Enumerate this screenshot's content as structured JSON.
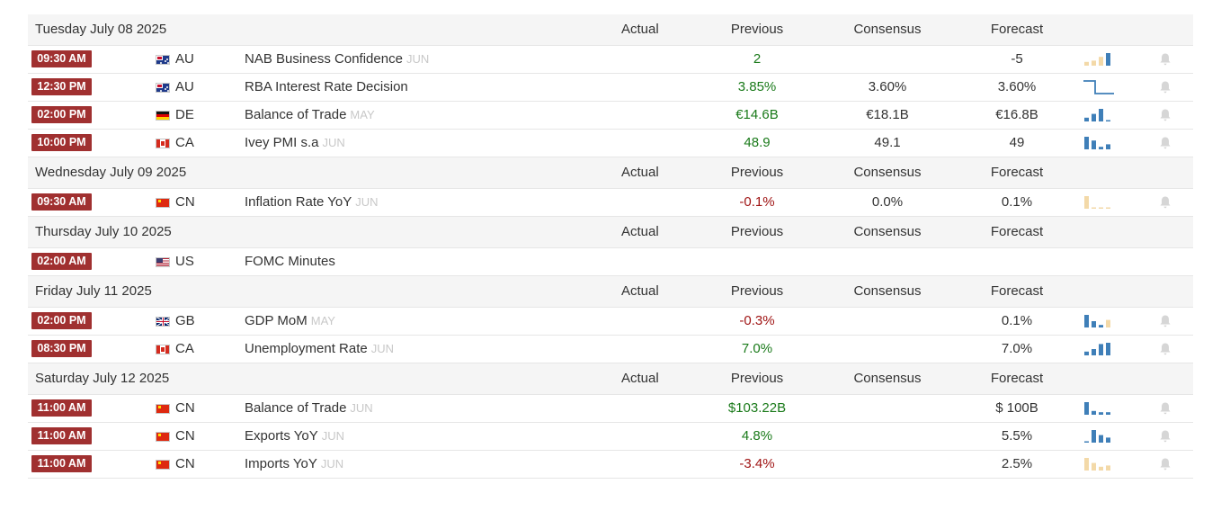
{
  "columns": {
    "actual": "Actual",
    "previous": "Previous",
    "consensus": "Consensus",
    "forecast": "Forecast"
  },
  "colors": {
    "time_badge": "#a03030",
    "positive": "#1a7a1a",
    "negative": "#a01515",
    "spark_blue": "#3f7fb8",
    "spark_orange": "#f3d9a8"
  },
  "days": [
    {
      "date": "Tuesday July 08 2025",
      "events": [
        {
          "time": "09:30 AM",
          "flag": "au",
          "country": "AU",
          "event": "NAB Business Confidence",
          "ref": "JUN",
          "actual": "",
          "previous": "2",
          "previous_tone": "pos",
          "consensus": "",
          "forecast": "-5",
          "spark": {
            "kind": "bars",
            "values": [
              0.3,
              0.4,
              0.7,
              1.0
            ],
            "colors": [
              "orange",
              "orange",
              "orange",
              "blue"
            ]
          }
        },
        {
          "time": "12:30 PM",
          "flag": "au",
          "country": "AU",
          "event": "RBA Interest Rate Decision",
          "ref": "",
          "actual": "",
          "previous": "3.85%",
          "previous_tone": "pos",
          "consensus": "3.60%",
          "forecast": "3.60%",
          "spark": {
            "kind": "step",
            "values": [
              1.0,
              1.0,
              0.0,
              0.0
            ]
          }
        },
        {
          "time": "02:00 PM",
          "flag": "de",
          "country": "DE",
          "event": "Balance of Trade",
          "ref": "MAY",
          "actual": "",
          "previous": "€14.6B",
          "previous_tone": "pos",
          "consensus": "€18.1B",
          "forecast": "€16.8B",
          "spark": {
            "kind": "bars",
            "values": [
              0.3,
              0.6,
              1.0,
              0.1
            ],
            "colors": [
              "blue",
              "blue",
              "blue",
              "blue"
            ]
          }
        },
        {
          "time": "10:00 PM",
          "flag": "ca",
          "country": "CA",
          "event": "Ivey PMI s.a",
          "ref": "JUN",
          "actual": "",
          "previous": "48.9",
          "previous_tone": "pos",
          "consensus": "49.1",
          "forecast": "49",
          "spark": {
            "kind": "bars",
            "values": [
              1.0,
              0.7,
              0.2,
              0.4
            ],
            "colors": [
              "blue",
              "blue",
              "blue",
              "blue"
            ]
          }
        }
      ]
    },
    {
      "date": "Wednesday July 09 2025",
      "events": [
        {
          "time": "09:30 AM",
          "flag": "cn",
          "country": "CN",
          "event": "Inflation Rate YoY",
          "ref": "JUN",
          "actual": "",
          "previous": "-0.1%",
          "previous_tone": "neg",
          "consensus": "0.0%",
          "forecast": "0.1%",
          "spark": {
            "kind": "bars",
            "values": [
              1.0,
              0.1,
              0.1,
              0.1
            ],
            "colors": [
              "orange",
              "orange",
              "orange",
              "orange"
            ]
          }
        }
      ]
    },
    {
      "date": "Thursday July 10 2025",
      "events": [
        {
          "time": "02:00 AM",
          "flag": "us",
          "country": "US",
          "event": "FOMC Minutes",
          "ref": "",
          "actual": "",
          "previous": "",
          "previous_tone": "neu",
          "consensus": "",
          "forecast": "",
          "spark": null,
          "bell": false
        }
      ]
    },
    {
      "date": "Friday July 11 2025",
      "events": [
        {
          "time": "02:00 PM",
          "flag": "gb",
          "country": "GB",
          "event": "GDP MoM",
          "ref": "MAY",
          "actual": "",
          "previous": "-0.3%",
          "previous_tone": "neg",
          "consensus": "",
          "forecast": "0.1%",
          "spark": {
            "kind": "bars",
            "values": [
              1.0,
              0.5,
              0.2,
              0.6
            ],
            "colors": [
              "blue",
              "blue",
              "blue",
              "orange"
            ]
          }
        },
        {
          "time": "08:30 PM",
          "flag": "ca",
          "country": "CA",
          "event": "Unemployment Rate",
          "ref": "JUN",
          "actual": "",
          "previous": "7.0%",
          "previous_tone": "pos",
          "consensus": "",
          "forecast": "7.0%",
          "spark": {
            "kind": "bars",
            "values": [
              0.3,
              0.5,
              0.9,
              1.0
            ],
            "colors": [
              "blue",
              "blue",
              "blue",
              "blue"
            ]
          }
        }
      ]
    },
    {
      "date": "Saturday July 12 2025",
      "events": [
        {
          "time": "11:00 AM",
          "flag": "cn",
          "country": "CN",
          "event": "Balance of Trade",
          "ref": "JUN",
          "actual": "",
          "previous": "$103.22B",
          "previous_tone": "pos",
          "consensus": "",
          "forecast": "$ 100B",
          "spark": {
            "kind": "bars",
            "values": [
              1.0,
              0.3,
              0.2,
              0.2
            ],
            "colors": [
              "blue",
              "blue",
              "blue",
              "blue"
            ]
          }
        },
        {
          "time": "11:00 AM",
          "flag": "cn",
          "country": "CN",
          "event": "Exports YoY",
          "ref": "JUN",
          "actual": "",
          "previous": "4.8%",
          "previous_tone": "pos",
          "consensus": "",
          "forecast": "5.5%",
          "spark": {
            "kind": "bars",
            "values": [
              0.1,
              1.0,
              0.6,
              0.4
            ],
            "colors": [
              "blue",
              "blue",
              "blue",
              "blue"
            ]
          }
        },
        {
          "time": "11:00 AM",
          "flag": "cn",
          "country": "CN",
          "event": "Imports YoY",
          "ref": "JUN",
          "actual": "",
          "previous": "-3.4%",
          "previous_tone": "neg",
          "consensus": "",
          "forecast": "2.5%",
          "spark": {
            "kind": "bars",
            "values": [
              1.0,
              0.6,
              0.3,
              0.4
            ],
            "colors": [
              "orange",
              "orange",
              "orange",
              "orange"
            ]
          }
        }
      ]
    }
  ]
}
